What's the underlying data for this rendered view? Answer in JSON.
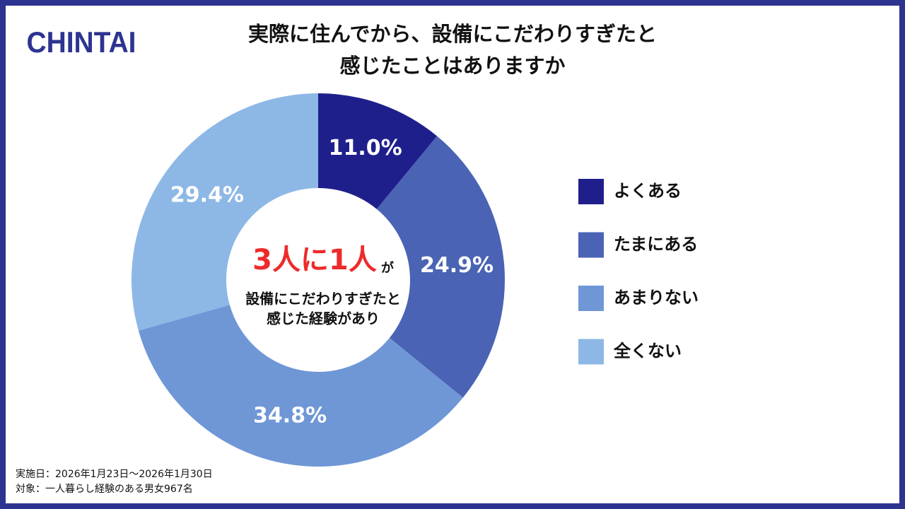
{
  "logo": "CHINTAI",
  "chart_data": {
    "type": "pie",
    "donut": true,
    "title": [
      "実際に住んでから、設備にこだわりすぎたと",
      "感じたことはありますか"
    ],
    "categories": [
      "よくある",
      "たまにある",
      "あまりない",
      "全くない"
    ],
    "values": [
      11.0,
      24.9,
      34.8,
      29.4
    ],
    "value_labels": [
      "11.0%",
      "24.9%",
      "34.8%",
      "29.4%"
    ],
    "colors": [
      "#1f1f8c",
      "#4a63b4",
      "#6f97d6",
      "#8db8e6"
    ],
    "legend": "right",
    "center_text": {
      "highlight": "3人に1人",
      "suffix": "が",
      "lines": [
        "設備にこだわりすぎたと",
        "感じた経験があり"
      ]
    }
  },
  "notes": [
    "実施日：2026年1月23日〜2026年1月30日",
    "対象：一人暮らし経験のある男女967名"
  ]
}
